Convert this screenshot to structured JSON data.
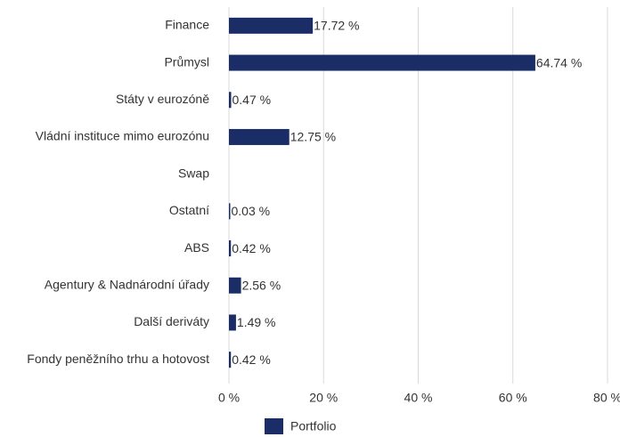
{
  "chart_data": {
    "type": "hbar",
    "categories": [
      "Finance",
      "Průmysl",
      "Státy v eurozóně",
      "Vládní instituce mimo eurozónu",
      "Swap",
      "Ostatní",
      "ABS",
      "Agentury & Nadnárodní úřady",
      "Další deriváty",
      "Fondy peněžního trhu a hotovost"
    ],
    "series": [
      {
        "name": "Portfolio",
        "color": "#1b2d66",
        "values": [
          17.72,
          64.74,
          0.47,
          12.75,
          null,
          0.03,
          0.42,
          2.56,
          1.49,
          0.42
        ],
        "value_labels": [
          "17.72 %",
          "64.74 %",
          "0.47 %",
          "12.75 %",
          null,
          "0.03 %",
          "0.42 %",
          "2.56 %",
          "1.49 %",
          "0.42 %"
        ]
      }
    ],
    "xlim": [
      0,
      80
    ],
    "xticks": [
      {
        "value": 0,
        "label": "0 %"
      },
      {
        "value": 20,
        "label": "20 %"
      },
      {
        "value": 40,
        "label": "40 %"
      },
      {
        "value": 60,
        "label": "60 %"
      },
      {
        "value": 80,
        "label": "80 %"
      }
    ],
    "grid": true,
    "legend": "bottom"
  }
}
